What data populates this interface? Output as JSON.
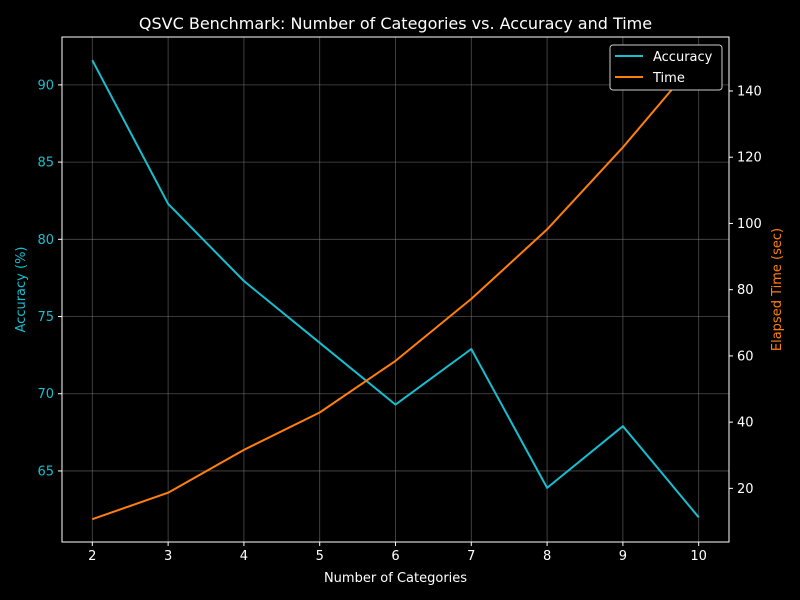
{
  "chart_data": {
    "type": "line",
    "title": "QSVC Benchmark: Number of Categories vs. Accuracy and Time",
    "xlabel": "Number of Categories",
    "ylabel_left": "Accuracy (%)",
    "ylabel_right": "Elapsed Time (sec)",
    "x": [
      2,
      3,
      4,
      5,
      6,
      7,
      8,
      9,
      10
    ],
    "xticks": [
      "2",
      "3",
      "4",
      "5",
      "6",
      "7",
      "8",
      "9",
      "10"
    ],
    "xlim": [
      1.6,
      10.4
    ],
    "ylim_left": [
      60.4,
      93.1
    ],
    "yticks_left": [
      "65",
      "70",
      "75",
      "80",
      "85",
      "90"
    ],
    "ylim_right": [
      3.8,
      156.3
    ],
    "yticks_right": [
      "20",
      "40",
      "60",
      "80",
      "100",
      "120",
      "140"
    ],
    "grid": true,
    "legend_position": "top-right",
    "series": [
      {
        "name": "Accuracy",
        "axis": "left",
        "color": "#17becf",
        "values": [
          91.6,
          82.3,
          77.3,
          73.3,
          69.3,
          72.9,
          63.9,
          67.9,
          62.0
        ]
      },
      {
        "name": "Time",
        "axis": "right",
        "color": "#ff7f0e",
        "values": [
          10.7,
          18.7,
          31.6,
          42.9,
          58.5,
          77.2,
          98.2,
          123.0,
          150.0
        ]
      }
    ],
    "colors": {
      "background": "#000000",
      "foreground": "#ffffff",
      "grid": "#808080",
      "left_axis": "#17becf",
      "right_axis": "#ff7f0e"
    }
  }
}
